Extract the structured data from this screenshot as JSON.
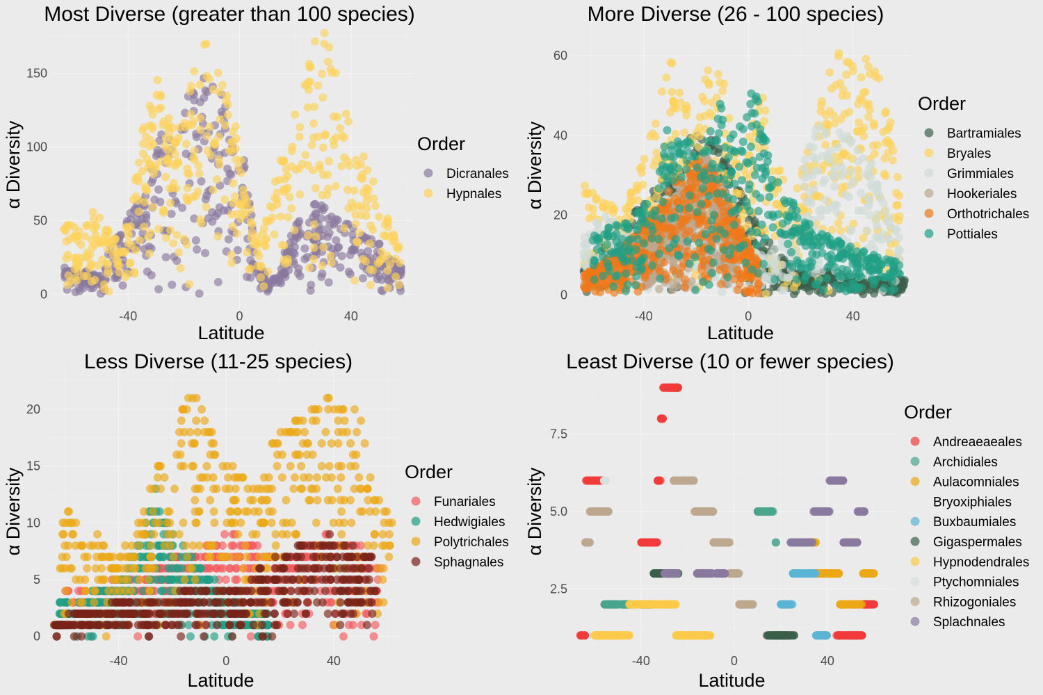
{
  "chart_data": [
    {
      "type": "scatter",
      "title": "Most Diverse (greater than 100 species)",
      "xlabel": "Latitude",
      "ylabel": "α Diversity",
      "xlim": [
        -66,
        60
      ],
      "ylim": [
        -6,
        182
      ],
      "xticks": [
        -40,
        0,
        40
      ],
      "yticks": [
        0,
        50,
        100,
        150
      ],
      "xtick_labels": [
        "-40",
        "0",
        "40"
      ],
      "ytick_labels": [
        "0",
        "50",
        "100",
        "150"
      ],
      "legend_title": "Order",
      "legend_position": "right",
      "grid": true,
      "series": [
        {
          "name": "Dicranales",
          "color": "#8a7a9e",
          "x": [
            -63,
            -58,
            -54,
            -50,
            -46,
            -42,
            -38,
            -34,
            -30,
            -26,
            -22,
            -18,
            -14,
            -10,
            -6,
            -2,
            2,
            6,
            10,
            14,
            18,
            22,
            26,
            30,
            34,
            38,
            42,
            46,
            50,
            54,
            58
          ],
          "y": [
            20,
            18,
            15,
            12,
            35,
            45,
            60,
            65,
            100,
            120,
            100,
            140,
            150,
            160,
            145,
            110,
            90,
            25,
            10,
            15,
            40,
            55,
            60,
            65,
            55,
            50,
            45,
            40,
            35,
            25,
            18
          ]
        },
        {
          "name": "Hypnales",
          "color": "#fdd25a",
          "x": [
            -63,
            -58,
            -54,
            -50,
            -46,
            -42,
            -38,
            -34,
            -30,
            -26,
            -22,
            -18,
            -14,
            -10,
            -6,
            -2,
            2,
            6,
            10,
            14,
            18,
            22,
            26,
            30,
            34,
            38,
            42,
            46,
            50,
            54,
            58
          ],
          "y": [
            50,
            45,
            60,
            55,
            40,
            35,
            80,
            120,
            150,
            130,
            110,
            140,
            175,
            170,
            150,
            120,
            80,
            40,
            55,
            90,
            120,
            140,
            170,
            180,
            160,
            130,
            110,
            90,
            70,
            50,
            35
          ]
        }
      ]
    },
    {
      "type": "scatter",
      "title": "More Diverse (26 - 100 species)",
      "xlabel": "Latitude",
      "ylabel": "α Diversity",
      "xlim": [
        -66,
        60
      ],
      "ylim": [
        -2,
        67
      ],
      "xticks": [
        -40,
        0,
        40
      ],
      "yticks": [
        0,
        20,
        40,
        60
      ],
      "xtick_labels": [
        "-40",
        "0",
        "40"
      ],
      "ytick_labels": [
        "0",
        "20",
        "40",
        "60"
      ],
      "legend_title": "Order",
      "legend_position": "right",
      "grid": true,
      "series": [
        {
          "name": "Bartramiales",
          "color": "#3b5f4a",
          "x": [
            -63,
            -56,
            -48,
            -40,
            -32,
            -24,
            -18,
            -12,
            -6,
            0,
            6,
            12,
            18,
            24,
            30,
            38,
            46,
            54,
            60
          ],
          "y": [
            8,
            12,
            18,
            24,
            30,
            38,
            45,
            40,
            30,
            22,
            15,
            10,
            6,
            5,
            6,
            5,
            4,
            4,
            4
          ]
        },
        {
          "name": "Bryales",
          "color": "#fdd25a",
          "x": [
            -63,
            -56,
            -48,
            -40,
            -34,
            -30,
            -26,
            -20,
            -14,
            -8,
            -2,
            4,
            10,
            16,
            22,
            28,
            34,
            40,
            46,
            52,
            58
          ],
          "y": [
            30,
            25,
            20,
            35,
            50,
            62,
            55,
            40,
            65,
            50,
            30,
            55,
            40,
            20,
            35,
            50,
            62,
            58,
            65,
            50,
            35
          ]
        },
        {
          "name": "Grimmiales",
          "color": "#cfdbd7",
          "x": [
            -63,
            -56,
            -48,
            -40,
            -32,
            -24,
            -16,
            -8,
            0,
            8,
            16,
            22,
            28,
            34,
            40,
            46,
            52,
            58
          ],
          "y": [
            15,
            20,
            18,
            15,
            25,
            30,
            20,
            15,
            12,
            10,
            20,
            35,
            45,
            42,
            40,
            35,
            25,
            15
          ]
        },
        {
          "name": "Hookeriales",
          "color": "#bda88f",
          "x": [
            -40,
            -34,
            -28,
            -22,
            -16,
            -10,
            -4
          ],
          "y": [
            10,
            18,
            25,
            30,
            35,
            28,
            18
          ]
        },
        {
          "name": "Orthotrichales",
          "color": "#f07818",
          "x": [
            -63,
            -56,
            -48,
            -40,
            -32,
            -26,
            -20,
            -14,
            -8,
            -2,
            4
          ],
          "y": [
            5,
            8,
            12,
            18,
            25,
            30,
            35,
            32,
            25,
            15,
            8
          ]
        },
        {
          "name": "Pottiales",
          "color": "#20a085",
          "x": [
            -60,
            -52,
            -44,
            -36,
            -30,
            -24,
            -18,
            -12,
            -6,
            0,
            2,
            6,
            12,
            20,
            30,
            40,
            50,
            58
          ],
          "y": [
            15,
            18,
            20,
            25,
            45,
            40,
            35,
            50,
            42,
            45,
            58,
            40,
            30,
            20,
            15,
            12,
            10,
            8
          ]
        }
      ]
    },
    {
      "type": "scatter",
      "title": "Less Diverse (11-25 species)",
      "xlabel": "Latitude",
      "ylabel": "α Diversity",
      "xlim": [
        -66,
        62
      ],
      "ylim": [
        -1,
        23
      ],
      "xticks": [
        -40,
        0,
        40
      ],
      "yticks": [
        0,
        5,
        10,
        15,
        20
      ],
      "xtick_labels": [
        "-40",
        "0",
        "40"
      ],
      "ytick_labels": [
        "0",
        "5",
        "10",
        "15",
        "20"
      ],
      "legend_title": "Order",
      "legend_position": "right",
      "grid": true,
      "series": [
        {
          "name": "Funariales",
          "color": "#f4595d",
          "x": [
            -60,
            -50,
            -40,
            -30,
            -20,
            -10,
            0,
            10,
            20,
            30,
            40,
            50,
            58
          ],
          "y": [
            4,
            4,
            5,
            6,
            7,
            8,
            9,
            8,
            7,
            8,
            9,
            8,
            6
          ]
        },
        {
          "name": "Hedwigiales",
          "color": "#20a085",
          "x": [
            -62,
            -55,
            -48,
            -40,
            -34,
            -30,
            -26,
            -20,
            -14,
            -8,
            -2,
            4,
            10,
            16
          ],
          "y": [
            3,
            3,
            4,
            5,
            8,
            10,
            13,
            9,
            7,
            6,
            4,
            3,
            2,
            2
          ]
        },
        {
          "name": "Polytrichales",
          "color": "#eca816",
          "x": [
            -62,
            -58,
            -54,
            -48,
            -42,
            -36,
            -30,
            -26,
            -22,
            -18,
            -14,
            -10,
            -6,
            -2,
            2,
            6,
            10,
            14,
            18,
            22,
            26,
            30,
            34,
            38,
            42,
            46,
            50,
            54,
            58,
            62
          ],
          "y": [
            10,
            12,
            8,
            9,
            7,
            8,
            12,
            15,
            16,
            20,
            22,
            21,
            18,
            16,
            15,
            15,
            13,
            14,
            18,
            19,
            20,
            20,
            21,
            21,
            20,
            21,
            19,
            16,
            12,
            10
          ]
        },
        {
          "name": "Sphagnales",
          "color": "#7a2318",
          "x": [
            -64,
            -56,
            -48,
            -40,
            -32,
            -24,
            -16,
            -8,
            0,
            8,
            14,
            20,
            26,
            32,
            38,
            44,
            50,
            56
          ],
          "y": [
            1,
            2,
            2,
            3,
            3,
            3,
            4,
            4,
            4,
            5,
            6,
            7,
            8,
            9,
            9,
            8,
            8,
            7
          ]
        }
      ]
    },
    {
      "type": "scatter",
      "title": "Least Diverse (10 or fewer species)",
      "xlabel": "Latitude",
      "ylabel": "α Diversity",
      "xlim": [
        -68,
        66
      ],
      "ylim": [
        0.6,
        9.4
      ],
      "xticks": [
        -40,
        0,
        40
      ],
      "yticks": [
        2.5,
        5.0,
        7.5
      ],
      "xtick_labels": [
        "-40",
        "0",
        "40"
      ],
      "ytick_labels": [
        "2.5",
        "5.0",
        "7.5"
      ],
      "legend_title": "Order",
      "legend_position": "right",
      "grid": true,
      "series": [
        {
          "name": "Andreaeaeales",
          "color": "#f23a3a",
          "x": [
            -66,
            -62,
            -34,
            -32,
            -31,
            -30,
            50,
            60
          ],
          "y": [
            1,
            6,
            4,
            6,
            8,
            9,
            1,
            2
          ]
        },
        {
          "name": "Archidiales",
          "color": "#4aa58e",
          "x": [
            -56,
            -50,
            16,
            18
          ],
          "y": [
            2,
            2,
            5,
            4
          ]
        },
        {
          "name": "Aulacomniales",
          "color": "#eca816",
          "x": [
            30,
            40,
            50,
            60
          ],
          "y": [
            4,
            3,
            2,
            3
          ]
        },
        {
          "name": "Bryoxiphiales",
          "color": "#ebebeb",
          "x": [
            0
          ],
          "y": [
            1
          ]
        },
        {
          "name": "Buxbaumiales",
          "color": "#5bb3d4",
          "x": [
            20,
            30,
            40
          ],
          "y": [
            2,
            3,
            1
          ]
        },
        {
          "name": "Gigaspermales",
          "color": "#3b5f4a",
          "x": [
            -40,
            -30,
            20,
            26
          ],
          "y": [
            2,
            3,
            1,
            1
          ]
        },
        {
          "name": "Hypnodendrales",
          "color": "#fdc94a",
          "x": [
            -60,
            -50,
            -40,
            -30,
            -20,
            -10
          ],
          "y": [
            1,
            1,
            2,
            2,
            1,
            1
          ]
        },
        {
          "name": "Ptychomniales",
          "color": "#d6e0dd",
          "x": [
            -56,
            -54
          ],
          "y": [
            6,
            5
          ]
        },
        {
          "name": "Rhizogoniales",
          "color": "#bda88f",
          "x": [
            -64,
            -60,
            -20,
            -14,
            -4,
            0,
            4,
            8
          ],
          "y": [
            4,
            5,
            6,
            5,
            4,
            3,
            2,
            2
          ]
        },
        {
          "name": "Splachnales",
          "color": "#8a7a9e",
          "x": [
            -30,
            -10,
            30,
            38,
            44,
            50,
            56
          ],
          "y": [
            3,
            3,
            4,
            5,
            6,
            4,
            5
          ]
        }
      ]
    }
  ]
}
